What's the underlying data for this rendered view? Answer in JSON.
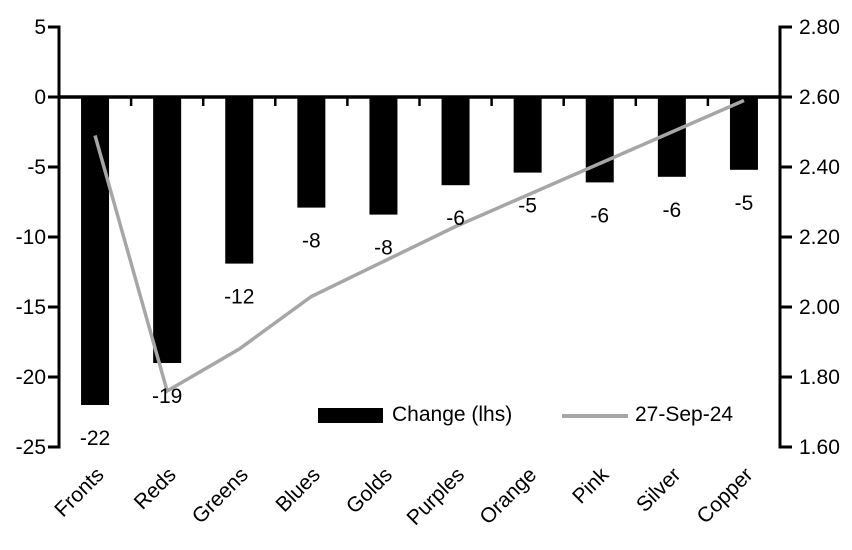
{
  "chart_data": {
    "type": "combo",
    "title": "",
    "categories": [
      "Fronts",
      "Reds",
      "Greens",
      "Blues",
      "Golds",
      "Purples",
      "Orange",
      "Pink",
      "Silver",
      "Copper"
    ],
    "series": [
      {
        "name": "Change (lhs)",
        "type": "bar",
        "axis": "left",
        "color": "#000000",
        "values": [
          -22.0,
          -19.0,
          -11.9,
          -7.9,
          -8.4,
          -6.3,
          -5.4,
          -6.1,
          -5.7,
          -5.2
        ],
        "data_labels": [
          "-22",
          "-19",
          "-12",
          "-8",
          "-8",
          "-6",
          "-5",
          "-6",
          "-6",
          "-5"
        ]
      },
      {
        "name": "27-Sep-24",
        "type": "line",
        "axis": "right",
        "color": "#a6a6a6",
        "values": [
          2.49,
          1.76,
          1.88,
          2.03,
          2.13,
          2.23,
          2.32,
          2.41,
          2.5,
          2.59
        ]
      }
    ],
    "left_axis": {
      "max": 5,
      "min": -25,
      "tick_labels": [
        "5",
        "0",
        "-5",
        "-10",
        "-15",
        "-20",
        "-25"
      ]
    },
    "right_axis": {
      "max": 2.8,
      "min": 1.6,
      "tick_labels": [
        "2.80",
        "2.60",
        "2.40",
        "2.20",
        "2.00",
        "1.80",
        "1.60"
      ]
    },
    "grid": "off",
    "legend": {
      "position": "inside-bottom-right",
      "items": [
        {
          "label": "Change (lhs)",
          "swatch": "bar",
          "color": "#000000"
        },
        {
          "label": "27-Sep-24",
          "swatch": "line",
          "color": "#a6a6a6"
        }
      ]
    },
    "axis_color": "#000000",
    "background_color": "#ffffff"
  }
}
